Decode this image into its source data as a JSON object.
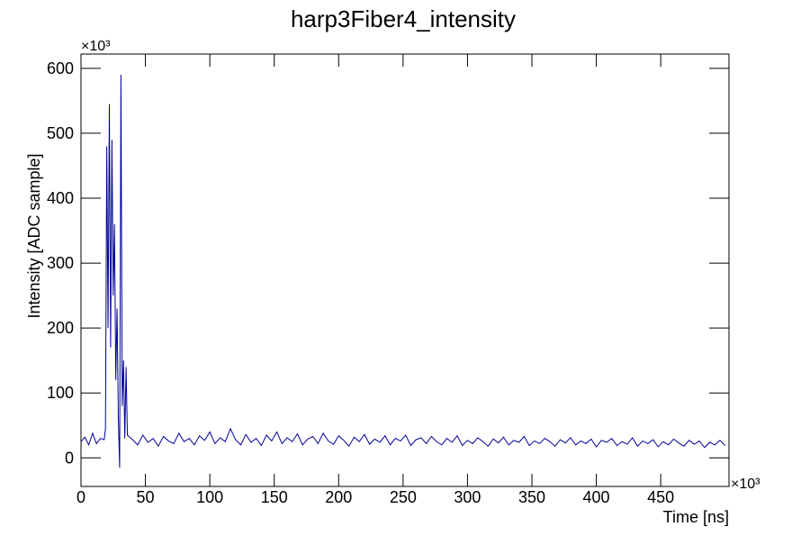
{
  "chart_data": {
    "type": "line",
    "title": "harp3Fiber4_intensity",
    "x_label": "Time [ns]",
    "y_label": "Intensity [ADC sample]",
    "x_multiplier": "×10³",
    "y_multiplier": "×10³",
    "xlim": [
      0,
      503
    ],
    "ylim": [
      -44,
      622
    ],
    "xticks": [
      0,
      50,
      100,
      150,
      200,
      250,
      300,
      350,
      400,
      450
    ],
    "yticks": [
      0,
      100,
      200,
      300,
      400,
      500,
      600
    ],
    "grid": false,
    "x": [
      0,
      3,
      6,
      9,
      12,
      15,
      18,
      19,
      20,
      21,
      22,
      23,
      24,
      25,
      26,
      27,
      28,
      29,
      30,
      31,
      32,
      33,
      34,
      35,
      36,
      40,
      44,
      48,
      52,
      56,
      60,
      64,
      68,
      72,
      76,
      80,
      84,
      88,
      92,
      96,
      100,
      104,
      108,
      112,
      116,
      120,
      124,
      128,
      132,
      136,
      140,
      144,
      148,
      152,
      156,
      160,
      164,
      168,
      172,
      176,
      180,
      184,
      188,
      192,
      196,
      200,
      204,
      208,
      212,
      216,
      220,
      224,
      228,
      232,
      236,
      240,
      244,
      248,
      252,
      256,
      260,
      264,
      268,
      272,
      276,
      280,
      284,
      288,
      292,
      296,
      300,
      304,
      308,
      312,
      316,
      320,
      324,
      328,
      332,
      336,
      340,
      344,
      348,
      352,
      356,
      360,
      364,
      368,
      372,
      376,
      380,
      384,
      388,
      392,
      396,
      400,
      404,
      408,
      412,
      416,
      420,
      424,
      428,
      432,
      436,
      440,
      444,
      448,
      452,
      456,
      460,
      464,
      468,
      472,
      476,
      480,
      484,
      488,
      492,
      496,
      500
    ],
    "series": [
      {
        "name": "harp3Fiber4_intensity",
        "color": "#000099",
        "values": [
          25,
          32,
          20,
          38,
          22,
          30,
          28,
          45,
          480,
          200,
          545,
          170,
          490,
          250,
          360,
          120,
          230,
          60,
          -15,
          590,
          80,
          150,
          30,
          140,
          35,
          28,
          20,
          35,
          24,
          30,
          18,
          33,
          26,
          22,
          38,
          25,
          30,
          20,
          34,
          27,
          40,
          22,
          31,
          25,
          45,
          28,
          20,
          36,
          24,
          30,
          19,
          35,
          26,
          40,
          22,
          31,
          25,
          37,
          20,
          29,
          33,
          22,
          38,
          26,
          21,
          34,
          27,
          18,
          32,
          25,
          36,
          21,
          29,
          24,
          34,
          20,
          30,
          26,
          35,
          19,
          28,
          31,
          22,
          33,
          25,
          20,
          30,
          24,
          34,
          19,
          27,
          22,
          31,
          25,
          18,
          29,
          23,
          32,
          20,
          27,
          24,
          33,
          19,
          26,
          22,
          30,
          25,
          18,
          28,
          23,
          31,
          20,
          26,
          22,
          29,
          17,
          27,
          24,
          30,
          19,
          25,
          21,
          31,
          18,
          26,
          22,
          28,
          17,
          25,
          20,
          29,
          23,
          18,
          27,
          21,
          26,
          16,
          24,
          20,
          27,
          19
        ]
      }
    ]
  }
}
